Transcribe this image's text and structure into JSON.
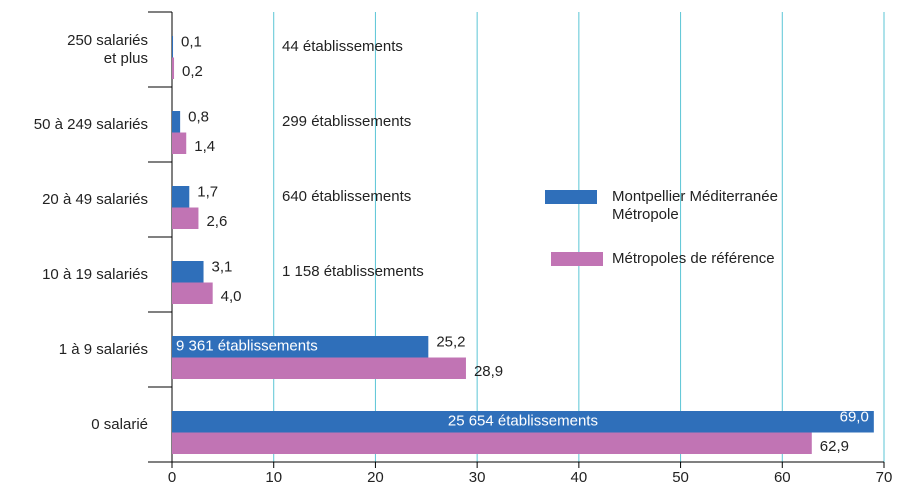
{
  "chart_data": {
    "type": "hbar",
    "categories": [
      "250 salariés\net plus",
      "50 à 249 salariés",
      "20 à 49 salariés",
      "10 à 19 salariés",
      "1 à 9 salariés",
      "0 salarié"
    ],
    "series": [
      {
        "name": "Montpellier Méditerranée\nMétropole",
        "color": "#2f6fba",
        "values": [
          0.1,
          0.8,
          1.7,
          3.1,
          25.2,
          69.0
        ],
        "value_labels": [
          "0,1",
          "0,8",
          "1,7",
          "3,1",
          "25,2",
          "69,0"
        ]
      },
      {
        "name": "Métropoles de référence",
        "color": "#c174b4",
        "values": [
          0.2,
          1.4,
          2.6,
          4.0,
          28.9,
          62.9
        ],
        "value_labels": [
          "0,2",
          "1,4",
          "2,6",
          "4,0",
          "28,9",
          "62,9"
        ]
      }
    ],
    "annotations": [
      "44 établissements",
      "299 établissements",
      "640 établissements",
      "1 158 établissements",
      "9 361 établissements",
      "25 654 établissements"
    ],
    "xlim": [
      0,
      70
    ],
    "xticks": [
      0,
      10,
      20,
      30,
      40,
      50,
      60,
      70
    ],
    "grid": true,
    "grid_color": "#5bc5d6"
  }
}
